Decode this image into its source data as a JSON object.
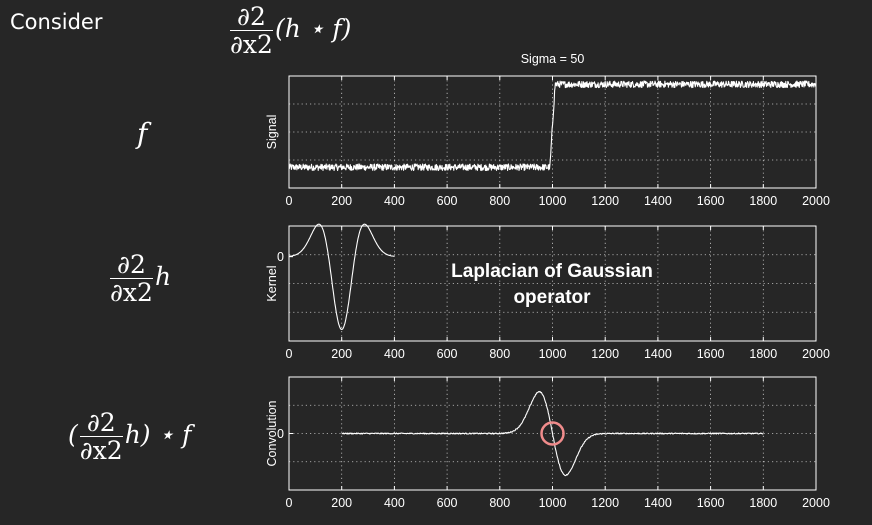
{
  "slide": {
    "heading": "Consider",
    "top_formula": {
      "num": "∂2",
      "den": "∂x2",
      "rest": "(h ⋆ f)"
    },
    "row_formulas": [
      {
        "text": "f"
      },
      {
        "num": "∂2",
        "den": "∂x2",
        "rest": "h"
      },
      {
        "pre": "(",
        "num": "∂2",
        "den": "∂x2",
        "rest": "h) ⋆ f"
      }
    ],
    "annotation": [
      "Laplacian of Gaussian",
      "operator"
    ]
  },
  "colors": {
    "background": "#262626",
    "axes": "#ffffff",
    "grid": "#ffffff",
    "line": "#ffffff",
    "highlight": "#f08c8c"
  },
  "chart_data": [
    {
      "type": "line",
      "title": "Sigma = 50",
      "ylabel": "Signal",
      "xlim": [
        0,
        2000
      ],
      "xticks": [
        0,
        200,
        400,
        600,
        800,
        1000,
        1200,
        1400,
        1600,
        1800,
        2000
      ],
      "ylim": [
        -0.25,
        1.1
      ],
      "yticks": [],
      "grid": true,
      "series": [
        {
          "x": [
            0,
            990,
            1010,
            2000
          ],
          "y": [
            0,
            0,
            1,
            1
          ],
          "noise": 0.018
        }
      ]
    },
    {
      "type": "line",
      "ylabel": "Kernel",
      "xlim": [
        0,
        2000
      ],
      "xticks": [
        0,
        200,
        400,
        600,
        800,
        1000,
        1200,
        1400,
        1600,
        1800,
        2000
      ],
      "ylim": [
        -3.3,
        1.2
      ],
      "yticks": [
        "0"
      ],
      "grid": true,
      "series": [
        {
          "kind": "log",
          "center": 200,
          "sigma": 50,
          "x_extent": [
            0,
            400
          ]
        }
      ]
    },
    {
      "type": "line",
      "ylabel": "Convolution",
      "xlim": [
        0,
        2000
      ],
      "xticks": [
        0,
        200,
        400,
        600,
        800,
        1000,
        1200,
        1400,
        1600,
        1800,
        2000
      ],
      "ylim": [
        -2.1,
        2.1
      ],
      "yticks": [
        "0"
      ],
      "grid": true,
      "series": [
        {
          "kind": "log_step",
          "center": 1000,
          "sigma": 50,
          "x_extent": [
            200,
            1800
          ],
          "peak_x": 950,
          "trough_x": 1050,
          "noise": 0.02
        }
      ],
      "highlight": {
        "x": 1000,
        "y": 0
      }
    }
  ]
}
